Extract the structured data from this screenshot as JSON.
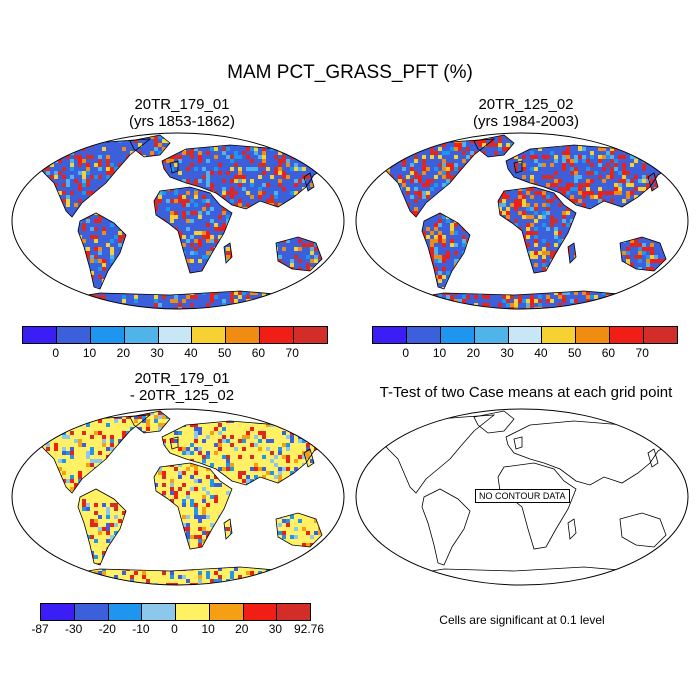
{
  "main_title": "MAM PCT_GRASS_PFT (%)",
  "panels": [
    {
      "title_line1": "20TR_179_01",
      "title_line2": "(yrs 1853-1862)"
    },
    {
      "title_line1": "20TR_125_02",
      "title_line2": "(yrs 1984-2003)"
    },
    {
      "title_line1": "20TR_179_01",
      "title_line2": "- 20TR_125_02"
    },
    {
      "title_line1": "T-Test of two Case means at each grid point",
      "title_line2": ""
    }
  ],
  "colorbar_top": {
    "colors": [
      "#3b1ef5",
      "#3c5fdc",
      "#1e96f0",
      "#50b4eb",
      "#c8e6f5",
      "#f5d232",
      "#f08c14",
      "#f01e14",
      "#d22d28"
    ],
    "labels": [
      "0",
      "10",
      "20",
      "30",
      "40",
      "50",
      "60",
      "70"
    ]
  },
  "colorbar_diff": {
    "colors": [
      "#3b1ef5",
      "#3c5fdc",
      "#1e96f0",
      "#8cc8eb",
      "#fff064",
      "#f5a014",
      "#f01e14",
      "#d22d28"
    ],
    "labels": [
      "-87",
      "-30",
      "-20",
      "-10",
      "0",
      "10",
      "20",
      "30",
      "92.76"
    ]
  },
  "no_contour_text": "NO CONTOUR DATA",
  "footnote": "Cells are significant at 0.1 level"
}
